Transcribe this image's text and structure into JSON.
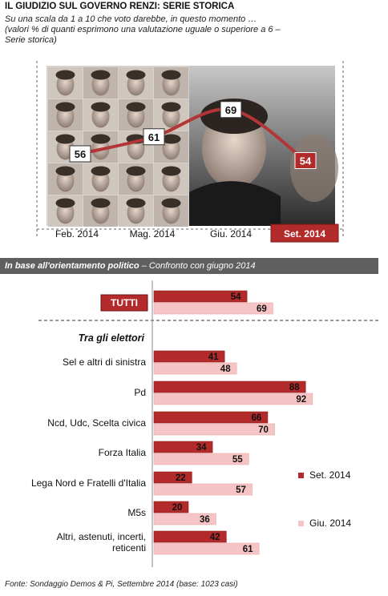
{
  "header": {
    "title": "IL GIUDIZIO SUL GOVERNO RENZI: SERIE STORICA",
    "subtitle_line1": "Su una scala da 1 a 10 che voto darebbe, in questo momento …",
    "subtitle_line2": "(valori % di quanti esprimono una valutazione uguale o superiore a 6 –",
    "subtitle_line3": "Serie storica)"
  },
  "section": {
    "label_bold": "In base all'orientamento politico",
    "label_rest": " – Confronto con giugno 2014"
  },
  "footer": {
    "source": "Fonte: Sondaggio Demos & Pi, Settembre 2014 (base: 1023 casi)"
  },
  "colors": {
    "set": "#b22a2a",
    "giu": "#f6c4c4",
    "line": "#b33636",
    "header": "#5f5f5f"
  },
  "chart_data": [
    {
      "type": "line",
      "categories": [
        "Feb. 2014",
        "Mag. 2014",
        "Giu. 2014",
        "Set. 2014"
      ],
      "values": [
        56,
        61,
        69,
        54
      ],
      "ylim": [
        40,
        80
      ]
    },
    {
      "type": "bar",
      "orientation": "horizontal",
      "group_label": "Tra gli elettori",
      "total": {
        "label": "TUTTI",
        "set": 54,
        "giu": 69
      },
      "categories": [
        "Sel e altri di sinistra",
        "Pd",
        "Ncd, Udc, Scelta civica",
        "Forza Italia",
        "Lega Nord e Fratelli d'Italia",
        "M5s",
        "Altri, astenuti, incerti, reticenti"
      ],
      "series": [
        {
          "name": "Set. 2014",
          "values": [
            41,
            88,
            66,
            34,
            22,
            20,
            42
          ]
        },
        {
          "name": "Giu. 2014",
          "values": [
            48,
            92,
            70,
            55,
            57,
            36,
            61
          ]
        }
      ],
      "xlim": [
        0,
        100
      ],
      "legend_position": "right"
    }
  ]
}
